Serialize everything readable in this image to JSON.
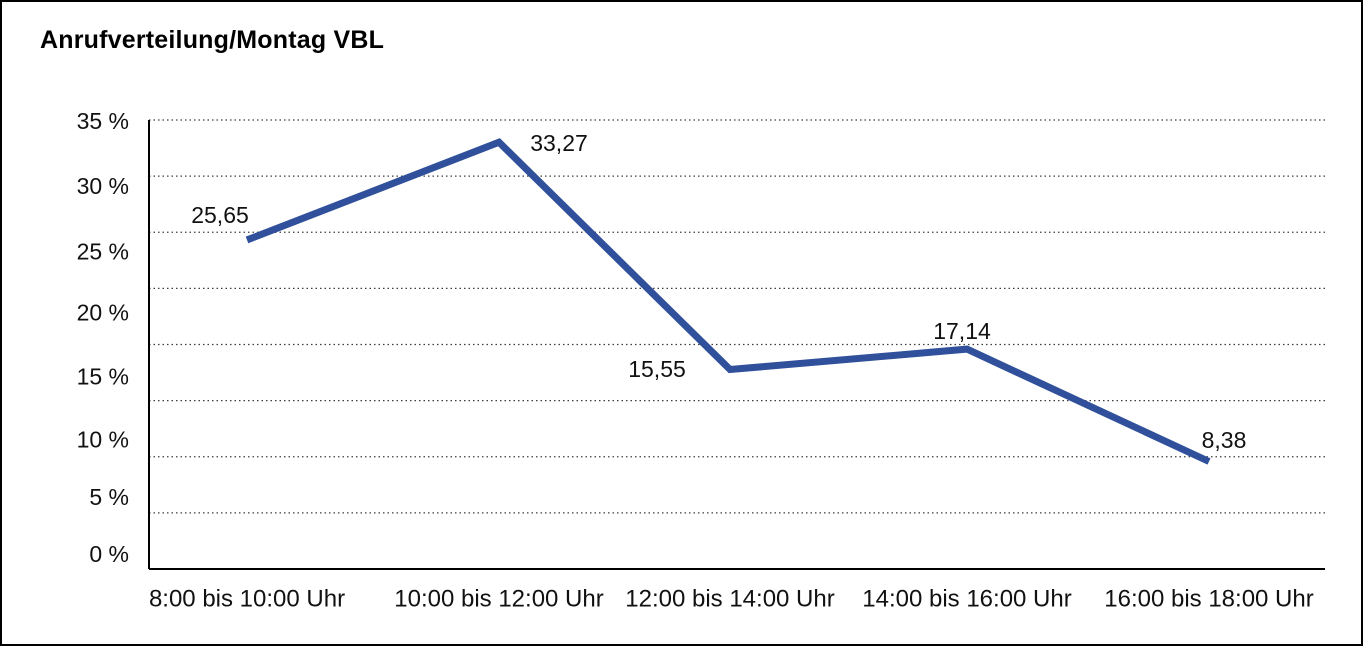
{
  "title": "Anrufverteilung/Montag VBL",
  "colors": {
    "line": "#30509B",
    "axis": "#000000",
    "grid": "#3d3d3d",
    "background": "#ffffff",
    "border": "#000000",
    "text": "#111111"
  },
  "chart_data": {
    "type": "line",
    "title": "Anrufverteilung/Montag VBL",
    "categories": [
      "8:00 bis 10:00 Uhr",
      "10:00 bis 12:00 Uhr",
      "12:00 bis 14:00 Uhr",
      "14:00 bis 16:00 Uhr",
      "16:00 bis 18:00 Uhr"
    ],
    "values": [
      25.65,
      33.27,
      15.55,
      17.14,
      8.38
    ],
    "value_labels": [
      "25,65",
      "33,27",
      "15,55",
      "17,14",
      "8,38"
    ],
    "y_ticks": [
      35,
      30,
      25,
      20,
      15,
      10,
      5,
      0
    ],
    "y_tick_labels": [
      "35 %",
      "30 %",
      "25 %",
      "20 %",
      "15 %",
      "10 %",
      "5 %",
      "0 %"
    ],
    "ylim": [
      0,
      35
    ],
    "xlabel": "",
    "ylabel": "",
    "grid": "horizontal-dotted",
    "legend": "none"
  }
}
